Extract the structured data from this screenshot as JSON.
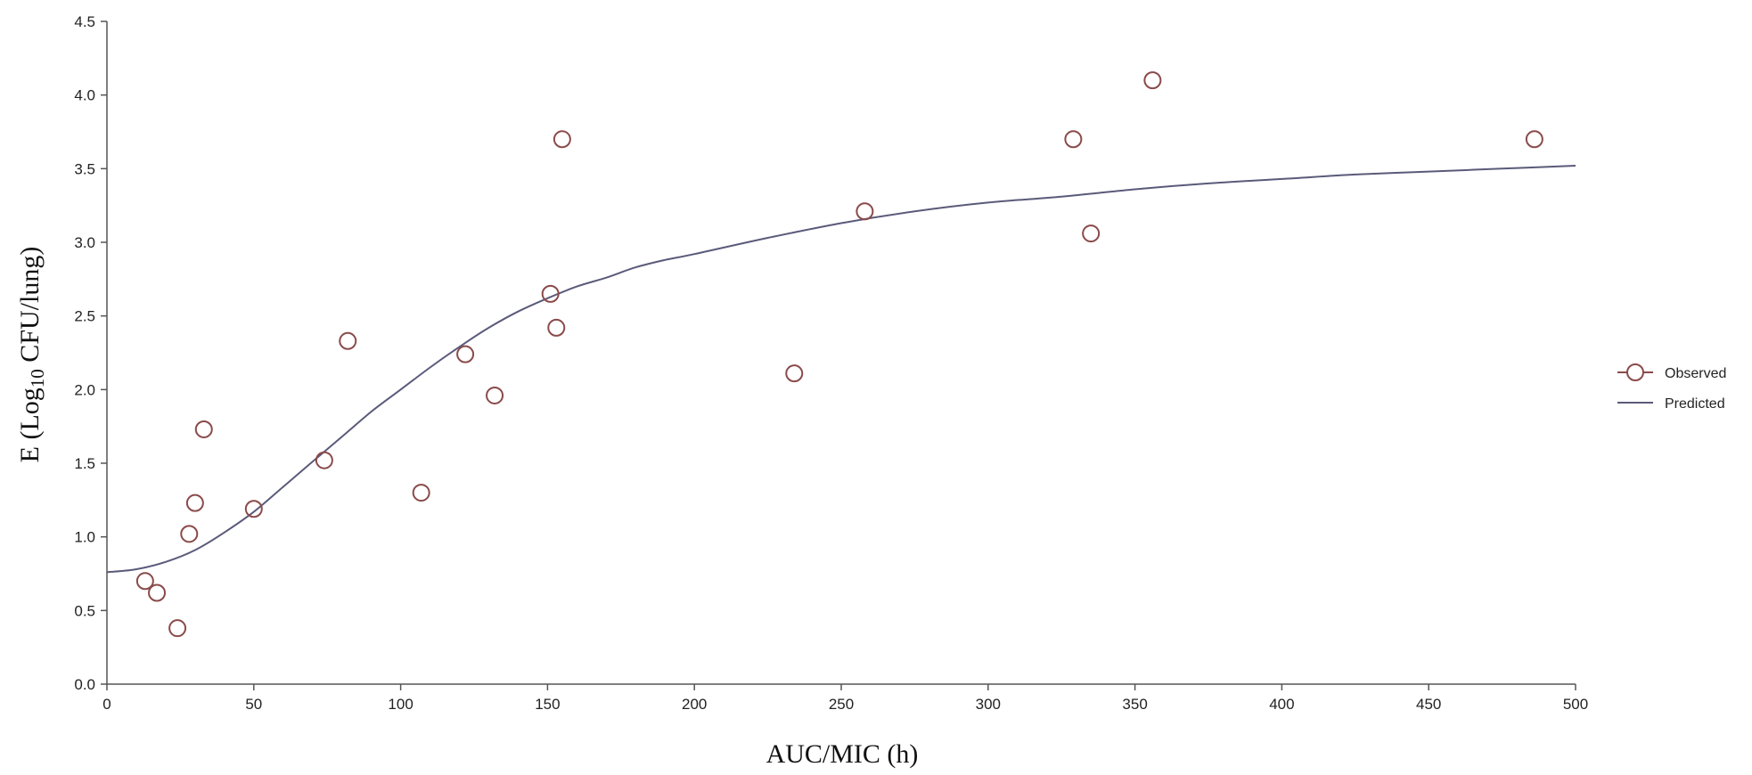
{
  "chart_data": {
    "type": "scatter",
    "title": "",
    "xlabel": "AUC/MIC (h)",
    "ylabel": {
      "prefix": "E (Log",
      "subscript": "10",
      "suffix": " CFU/lung)"
    },
    "xlim": [
      0,
      500
    ],
    "ylim": [
      0,
      4.5
    ],
    "x_ticks": [
      "0",
      "50",
      "100",
      "150",
      "200",
      "250",
      "300",
      "350",
      "400",
      "450",
      "500"
    ],
    "y_ticks": [
      "0.0",
      "0.5",
      "1.0",
      "1.5",
      "2.0",
      "2.5",
      "3.0",
      "3.5",
      "4.0",
      "4.5"
    ],
    "grid": false,
    "legend_position": "right",
    "series": [
      {
        "name": "Observed",
        "kind": "points",
        "color": "#8b4a4a",
        "points": [
          [
            13,
            0.7
          ],
          [
            17,
            0.62
          ],
          [
            24,
            0.38
          ],
          [
            28,
            1.02
          ],
          [
            30,
            1.23
          ],
          [
            33,
            1.73
          ],
          [
            50,
            1.19
          ],
          [
            74,
            1.52
          ],
          [
            82,
            2.33
          ],
          [
            107,
            1.3
          ],
          [
            122,
            2.24
          ],
          [
            132,
            1.96
          ],
          [
            151,
            2.65
          ],
          [
            153,
            2.42
          ],
          [
            155,
            3.7
          ],
          [
            234,
            2.11
          ],
          [
            258,
            3.21
          ],
          [
            329,
            3.7
          ],
          [
            335,
            3.06
          ],
          [
            356,
            4.1
          ],
          [
            486,
            3.7
          ]
        ]
      },
      {
        "name": "Predicted",
        "kind": "line",
        "color": "#5a5a7a",
        "points": [
          [
            0,
            0.76
          ],
          [
            10,
            0.78
          ],
          [
            20,
            0.83
          ],
          [
            30,
            0.91
          ],
          [
            40,
            1.03
          ],
          [
            50,
            1.17
          ],
          [
            60,
            1.34
          ],
          [
            70,
            1.51
          ],
          [
            80,
            1.68
          ],
          [
            90,
            1.85
          ],
          [
            100,
            2.0
          ],
          [
            110,
            2.15
          ],
          [
            120,
            2.29
          ],
          [
            130,
            2.42
          ],
          [
            140,
            2.53
          ],
          [
            150,
            2.62
          ],
          [
            160,
            2.7
          ],
          [
            170,
            2.76
          ],
          [
            180,
            2.83
          ],
          [
            190,
            2.88
          ],
          [
            200,
            2.92
          ],
          [
            225,
            3.03
          ],
          [
            250,
            3.13
          ],
          [
            275,
            3.21
          ],
          [
            300,
            3.27
          ],
          [
            325,
            3.31
          ],
          [
            350,
            3.36
          ],
          [
            375,
            3.4
          ],
          [
            400,
            3.43
          ],
          [
            425,
            3.46
          ],
          [
            450,
            3.48
          ],
          [
            475,
            3.5
          ],
          [
            500,
            3.52
          ]
        ]
      }
    ]
  }
}
